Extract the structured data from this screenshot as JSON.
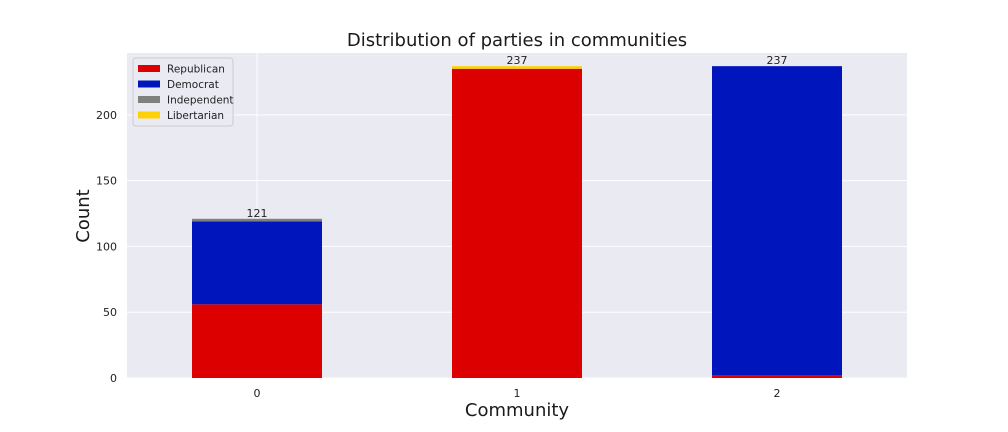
{
  "chart_data": {
    "type": "bar",
    "stacked": true,
    "title": "Distribution of parties in communities",
    "xlabel": "Community",
    "ylabel": "Count",
    "categories": [
      "0",
      "1",
      "2"
    ],
    "series": [
      {
        "name": "Republican",
        "color": "#dd0000",
        "values": [
          56,
          235,
          2
        ]
      },
      {
        "name": "Democrat",
        "color": "#0015bc",
        "values": [
          63,
          0,
          235
        ]
      },
      {
        "name": "Independent",
        "color": "#808080",
        "values": [
          2,
          0,
          0
        ]
      },
      {
        "name": "Libertarian",
        "color": "#fed105",
        "values": [
          0,
          2,
          0
        ]
      }
    ],
    "totals": [
      "121",
      "237",
      "237"
    ],
    "ylim": [
      0,
      247
    ],
    "yticks": [
      0,
      50,
      100,
      150,
      200
    ],
    "grid": true,
    "legend_position": "top-left",
    "background_color": "#eaeaf2"
  }
}
